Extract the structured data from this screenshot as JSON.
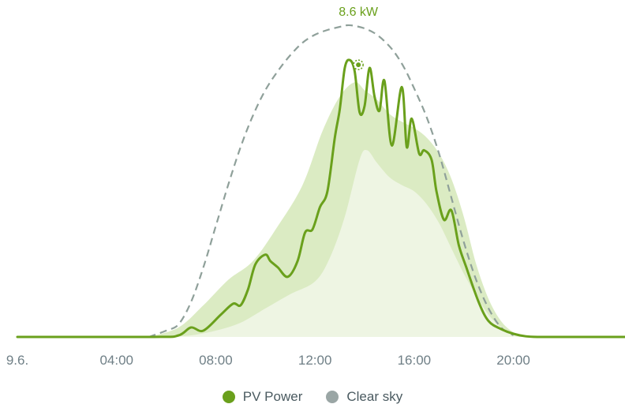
{
  "colors": {
    "pv": "#6aa01c",
    "band_outer": "#d5e7b8",
    "band_inner": "#eef5e3",
    "clearsky": "#8fa09a",
    "axis_text": "#6f7f86"
  },
  "chart_data": {
    "type": "line",
    "x_unit": "hours of day 9.6.",
    "xlim": [
      0,
      24.5
    ],
    "ylim": [
      0,
      9.9
    ],
    "x_ticks": [
      "9.6.",
      "04:00",
      "08:00",
      "12:00",
      "16:00",
      "20:00"
    ],
    "peak_label": "8.6 kW",
    "peak": {
      "x": 13.75,
      "y": 8.6
    },
    "series": [
      {
        "name": "PV Power",
        "kind": "line",
        "x": [
          0,
          5.5,
          6.5,
          7.0,
          7.5,
          8.2,
          8.7,
          9.0,
          9.3,
          9.6,
          10.0,
          10.2,
          10.5,
          10.9,
          11.3,
          11.6,
          11.9,
          12.2,
          12.5,
          12.8,
          13.0,
          13.2,
          13.4,
          13.6,
          13.8,
          14.0,
          14.2,
          14.4,
          14.6,
          14.8,
          15.1,
          15.5,
          15.7,
          15.9,
          16.2,
          16.4,
          16.7,
          16.9,
          17.2,
          17.5,
          17.8,
          18.1,
          18.6,
          19.0,
          19.5,
          20.0,
          20.5,
          21.0,
          22.0,
          24.5
        ],
        "y": [
          0,
          0,
          0.05,
          0.3,
          0.2,
          0.7,
          1.05,
          1.0,
          1.5,
          2.3,
          2.6,
          2.4,
          2.2,
          1.9,
          2.4,
          3.3,
          3.4,
          4.1,
          4.6,
          6.3,
          7.2,
          8.5,
          8.75,
          8.4,
          7.1,
          7.3,
          8.5,
          7.6,
          7.15,
          8.1,
          6.05,
          7.9,
          6.0,
          6.9,
          5.8,
          5.9,
          5.6,
          4.6,
          3.7,
          4.0,
          2.9,
          2.2,
          1.1,
          0.5,
          0.25,
          0.1,
          0.02,
          0,
          0,
          0
        ]
      },
      {
        "kind": "band-outer",
        "x": [
          5.3,
          6.5,
          7.5,
          8.5,
          9.5,
          10.5,
          11.5,
          12.3,
          13.0,
          13.6,
          14.0,
          14.5,
          15.0,
          15.5,
          16.0,
          16.5,
          17.0,
          17.5,
          18.0,
          18.5,
          19.0,
          19.5,
          20.0,
          20.5,
          21.0
        ],
        "y": [
          0,
          0.3,
          1.0,
          1.8,
          2.4,
          3.5,
          4.8,
          6.5,
          7.6,
          8.05,
          7.8,
          7.5,
          7.05,
          6.8,
          6.6,
          6.3,
          5.8,
          5.0,
          3.8,
          2.3,
          1.2,
          0.5,
          0.15,
          0.03,
          0
        ]
      },
      {
        "kind": "band-inner",
        "x": [
          6.0,
          7.0,
          8.0,
          9.0,
          10.0,
          11.0,
          12.0,
          12.6,
          13.2,
          13.8,
          14.1,
          14.5,
          15.0,
          15.5,
          16.0,
          16.5,
          17.0,
          17.5,
          18.0,
          18.5,
          19.0,
          19.5,
          20.0,
          20.5
        ],
        "y": [
          0,
          0.05,
          0.2,
          0.45,
          0.9,
          1.35,
          1.75,
          2.5,
          3.8,
          5.6,
          5.9,
          5.5,
          5.05,
          4.8,
          4.6,
          4.2,
          3.6,
          2.8,
          2.0,
          1.3,
          0.7,
          0.3,
          0.08,
          0
        ]
      },
      {
        "name": "Clear sky",
        "kind": "dashed",
        "x": [
          5.3,
          6.0,
          6.5,
          7.0,
          7.5,
          8.0,
          8.5,
          9.0,
          9.5,
          10.0,
          10.5,
          11.0,
          11.5,
          12.0,
          12.5,
          13.0,
          13.3,
          13.6,
          14.0,
          14.4,
          14.8,
          15.2,
          15.6,
          16.0,
          16.5,
          17.0,
          17.5,
          18.0,
          18.5,
          19.0,
          19.5,
          20.0
        ],
        "y": [
          0,
          0.2,
          0.4,
          1.1,
          2.2,
          3.5,
          4.8,
          6.0,
          7.0,
          7.8,
          8.4,
          8.9,
          9.3,
          9.55,
          9.7,
          9.8,
          9.85,
          9.83,
          9.75,
          9.6,
          9.35,
          9.0,
          8.5,
          7.85,
          6.95,
          5.8,
          4.4,
          3.0,
          1.8,
          0.9,
          0.3,
          0.05
        ]
      }
    ]
  },
  "legend": {
    "items": [
      {
        "label": "PV Power",
        "color": "#6aa01c"
      },
      {
        "label": "Clear sky",
        "color": "#9aa6a5"
      }
    ]
  }
}
